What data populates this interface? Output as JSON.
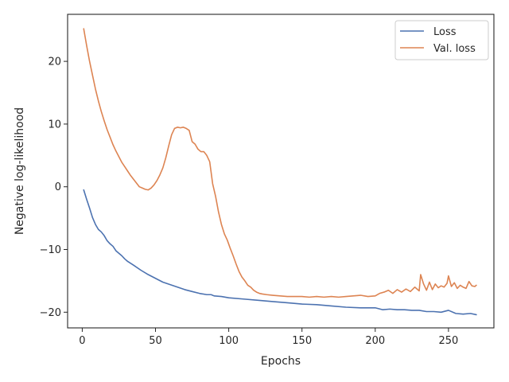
{
  "chart_data": {
    "type": "line",
    "xlabel": "Epochs",
    "ylabel": "Negative log-likelihood",
    "xlim": [
      -10,
      281
    ],
    "ylim": [
      -22.5,
      27.5
    ],
    "xticks": [
      0,
      50,
      100,
      150,
      200,
      250
    ],
    "yticks": [
      -20,
      -10,
      0,
      10,
      20
    ],
    "xtick_labels": [
      "0",
      "50",
      "100",
      "150",
      "200",
      "250"
    ],
    "ytick_labels": [
      "−20",
      "−10",
      "0",
      "10",
      "20"
    ],
    "grid": false,
    "legend_position": "top-right",
    "series": [
      {
        "name": "Loss",
        "color": "#4c72b0",
        "x": [
          1,
          3,
          5,
          7,
          9,
          11,
          13,
          15,
          17,
          19,
          21,
          23,
          25,
          27,
          29,
          31,
          33,
          35,
          40,
          45,
          50,
          55,
          60,
          65,
          70,
          75,
          80,
          85,
          88,
          90,
          95,
          100,
          110,
          120,
          130,
          140,
          150,
          160,
          170,
          180,
          190,
          200,
          205,
          210,
          215,
          220,
          225,
          230,
          235,
          240,
          245,
          250,
          255,
          260,
          265,
          269
        ],
        "y": [
          -0.5,
          -2.0,
          -3.4,
          -4.9,
          -6.0,
          -6.8,
          -7.2,
          -7.8,
          -8.6,
          -9.1,
          -9.5,
          -10.2,
          -10.6,
          -11.0,
          -11.5,
          -11.9,
          -12.2,
          -12.5,
          -13.3,
          -14.0,
          -14.6,
          -15.2,
          -15.6,
          -16.0,
          -16.4,
          -16.7,
          -17.0,
          -17.2,
          -17.2,
          -17.4,
          -17.5,
          -17.7,
          -17.9,
          -18.1,
          -18.3,
          -18.5,
          -18.7,
          -18.8,
          -19.0,
          -19.2,
          -19.3,
          -19.3,
          -19.6,
          -19.5,
          -19.6,
          -19.6,
          -19.7,
          -19.7,
          -19.9,
          -19.9,
          -20.0,
          -19.7,
          -20.2,
          -20.3,
          -20.2,
          -20.4
        ]
      },
      {
        "name": "Val. loss",
        "color": "#dd8452",
        "x": [
          1,
          3,
          5,
          7,
          9,
          11,
          13,
          15,
          17,
          19,
          21,
          23,
          25,
          27,
          29,
          31,
          33,
          35,
          37,
          39,
          41,
          43,
          45,
          47,
          49,
          51,
          53,
          55,
          57,
          59,
          61,
          63,
          65,
          67,
          69,
          71,
          73,
          75,
          77,
          79,
          81,
          83,
          85,
          87,
          89,
          91,
          93,
          95,
          97,
          99,
          101,
          103,
          105,
          107,
          109,
          111,
          113,
          115,
          117,
          119,
          121,
          123,
          126,
          130,
          135,
          140,
          145,
          150,
          155,
          160,
          165,
          170,
          175,
          180,
          185,
          190,
          195,
          200,
          203,
          206,
          209,
          212,
          215,
          218,
          221,
          224,
          227,
          230,
          231,
          233,
          235,
          237,
          239,
          241,
          243,
          245,
          247,
          249,
          250,
          252,
          254,
          256,
          258,
          260,
          262,
          264,
          266,
          268,
          269
        ],
        "y": [
          25.2,
          22.5,
          20.0,
          17.8,
          15.6,
          13.7,
          12.0,
          10.5,
          9.1,
          7.9,
          6.7,
          5.7,
          4.8,
          3.9,
          3.2,
          2.5,
          1.8,
          1.2,
          0.6,
          0.0,
          -0.2,
          -0.4,
          -0.5,
          -0.2,
          0.3,
          1.0,
          1.9,
          3.0,
          4.6,
          6.5,
          8.3,
          9.3,
          9.5,
          9.4,
          9.5,
          9.3,
          9.0,
          7.2,
          6.8,
          6.0,
          5.6,
          5.6,
          5.0,
          4.0,
          0.5,
          -1.5,
          -4.0,
          -6.0,
          -7.5,
          -8.5,
          -9.8,
          -11.0,
          -12.3,
          -13.5,
          -14.4,
          -15.0,
          -15.7,
          -16.0,
          -16.5,
          -16.8,
          -17.0,
          -17.1,
          -17.2,
          -17.3,
          -17.4,
          -17.5,
          -17.5,
          -17.5,
          -17.6,
          -17.5,
          -17.6,
          -17.5,
          -17.6,
          -17.5,
          -17.4,
          -17.3,
          -17.5,
          -17.4,
          -17.0,
          -16.8,
          -16.5,
          -17.0,
          -16.4,
          -16.8,
          -16.3,
          -16.7,
          -16.0,
          -16.6,
          -14.0,
          -15.5,
          -16.5,
          -15.2,
          -16.4,
          -15.5,
          -16.1,
          -15.8,
          -16.0,
          -15.4,
          -14.2,
          -15.9,
          -15.3,
          -16.2,
          -15.7,
          -16.0,
          -16.2,
          -15.1,
          -15.8,
          -15.9,
          -15.7
        ]
      }
    ]
  }
}
